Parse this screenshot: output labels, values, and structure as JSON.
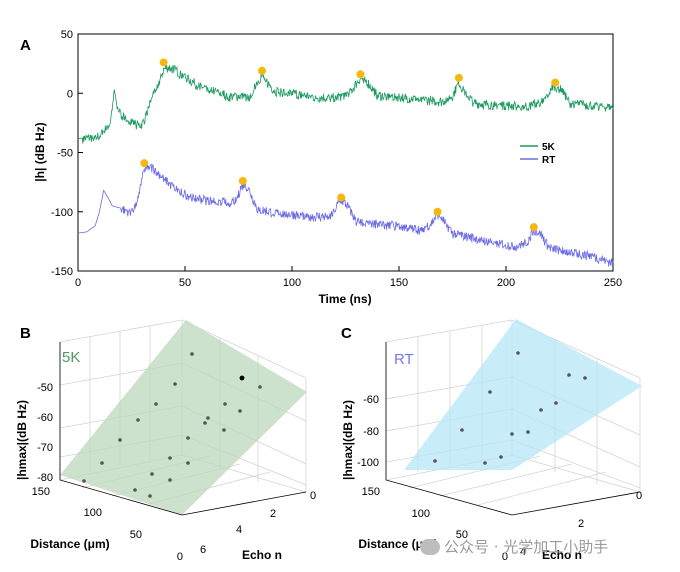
{
  "chart_data": [
    {
      "panel": "A",
      "type": "line",
      "xlabel": "Time (ns)",
      "ylabel": "|h| (dB Hz)",
      "xlim": [
        0,
        250
      ],
      "ylim": [
        -150,
        50
      ],
      "xticks": [
        "0",
        "50",
        "100",
        "150",
        "200",
        "250"
      ],
      "yticks": [
        "50",
        "0",
        "-50",
        "-100",
        "-150"
      ],
      "legend": {
        "placement": "right",
        "entries": [
          "5K",
          "RT"
        ]
      },
      "series": [
        {
          "name": "5K",
          "color": "#1e9a62",
          "base_points": [
            [
              0,
              -38
            ],
            [
              4,
              -38
            ],
            [
              10,
              -36
            ],
            [
              13,
              -30
            ],
            [
              15,
              -25
            ],
            [
              16,
              -12
            ],
            [
              17,
              3
            ],
            [
              18,
              -10
            ],
            [
              20,
              -18
            ],
            [
              24,
              -22
            ],
            [
              28,
              -27
            ],
            [
              30,
              -26
            ],
            [
              32,
              -18
            ],
            [
              34,
              -5
            ],
            [
              36,
              3
            ],
            [
              38,
              10
            ],
            [
              40,
              20
            ],
            [
              42,
              22
            ],
            [
              45,
              20
            ],
            [
              50,
              14
            ],
            [
              55,
              8
            ],
            [
              60,
              4
            ],
            [
              65,
              2
            ],
            [
              70,
              -3
            ],
            [
              75,
              -2
            ],
            [
              80,
              -4
            ],
            [
              83,
              8
            ],
            [
              86,
              15
            ],
            [
              88,
              10
            ],
            [
              92,
              2
            ],
            [
              100,
              0
            ],
            [
              110,
              -3
            ],
            [
              120,
              -4
            ],
            [
              125,
              -1
            ],
            [
              128,
              3
            ],
            [
              132,
              13
            ],
            [
              135,
              10
            ],
            [
              140,
              -2
            ],
            [
              150,
              -3
            ],
            [
              160,
              -5
            ],
            [
              170,
              -7
            ],
            [
              175,
              -2
            ],
            [
              178,
              9
            ],
            [
              180,
              3
            ],
            [
              185,
              -8
            ],
            [
              190,
              -9
            ],
            [
              200,
              -10
            ],
            [
              210,
              -11
            ],
            [
              218,
              -6
            ],
            [
              222,
              7
            ],
            [
              226,
              3
            ],
            [
              230,
              -8
            ],
            [
              240,
              -10
            ],
            [
              250,
              -12
            ]
          ],
          "peaks": [
            [
              40,
              26
            ],
            [
              86,
              19
            ],
            [
              132,
              16
            ],
            [
              178,
              13
            ],
            [
              223,
              9
            ]
          ]
        },
        {
          "name": "RT",
          "color": "#6a6ae6",
          "base_points": [
            [
              0,
              -118
            ],
            [
              4,
              -117
            ],
            [
              8,
              -112
            ],
            [
              10,
              -100
            ],
            [
              12,
              -82
            ],
            [
              14,
              -88
            ],
            [
              16,
              -95
            ],
            [
              20,
              -97
            ],
            [
              24,
              -100
            ],
            [
              27,
              -95
            ],
            [
              29,
              -80
            ],
            [
              31,
              -65
            ],
            [
              33,
              -62
            ],
            [
              36,
              -64
            ],
            [
              40,
              -72
            ],
            [
              45,
              -80
            ],
            [
              50,
              -85
            ],
            [
              55,
              -88
            ],
            [
              60,
              -90
            ],
            [
              65,
              -91
            ],
            [
              70,
              -92
            ],
            [
              74,
              -90
            ],
            [
              76,
              -80
            ],
            [
              78,
              -76
            ],
            [
              80,
              -82
            ],
            [
              84,
              -98
            ],
            [
              90,
              -100
            ],
            [
              100,
              -102
            ],
            [
              110,
              -104
            ],
            [
              118,
              -104
            ],
            [
              121,
              -95
            ],
            [
              123,
              -90
            ],
            [
              126,
              -95
            ],
            [
              130,
              -108
            ],
            [
              140,
              -110
            ],
            [
              150,
              -112
            ],
            [
              160,
              -115
            ],
            [
              165,
              -110
            ],
            [
              168,
              -102
            ],
            [
              170,
              -105
            ],
            [
              175,
              -118
            ],
            [
              185,
              -122
            ],
            [
              195,
              -126
            ],
            [
              205,
              -129
            ],
            [
              210,
              -125
            ],
            [
              213,
              -115
            ],
            [
              216,
              -118
            ],
            [
              220,
              -130
            ],
            [
              230,
              -134
            ],
            [
              240,
              -137
            ],
            [
              250,
              -143
            ]
          ],
          "peaks": [
            [
              31,
              -59
            ],
            [
              77,
              -74
            ],
            [
              123,
              -88
            ],
            [
              168,
              -100
            ],
            [
              213,
              -113
            ]
          ]
        }
      ],
      "peak_marker_color": "#f5b80e"
    },
    {
      "panel": "B",
      "type": "scatter",
      "title": "5K",
      "xlabel": "Echo n",
      "ylabel": "|hmax|(dB Hz)",
      "zlabel": "Distance (μm)",
      "echo_ticks": [
        "0",
        "2",
        "4",
        "6"
      ],
      "distance_ticks": [
        "150",
        "100",
        "50",
        "0"
      ],
      "hmax_ticks": [
        "-50",
        "-60",
        "-70",
        "-80"
      ],
      "plane_color": "#bcd8bc",
      "points_color": "#555555",
      "highlight_color": "#000000"
    },
    {
      "panel": "C",
      "type": "scatter",
      "title": "RT",
      "xlabel": "Echo n",
      "ylabel": "|hmax|(dB Hz)",
      "zlabel": "Distance (μm)",
      "echo_ticks": [
        "0",
        "2",
        "4"
      ],
      "distance_ticks": [
        "150",
        "100",
        "50",
        "0"
      ],
      "hmax_ticks": [
        "-60",
        "-80",
        "-100"
      ],
      "plane_color": "#b5e7f7",
      "points_color": "#555555"
    }
  ],
  "watermark": {
    "text": "公众号 · 光学加工小助手"
  }
}
